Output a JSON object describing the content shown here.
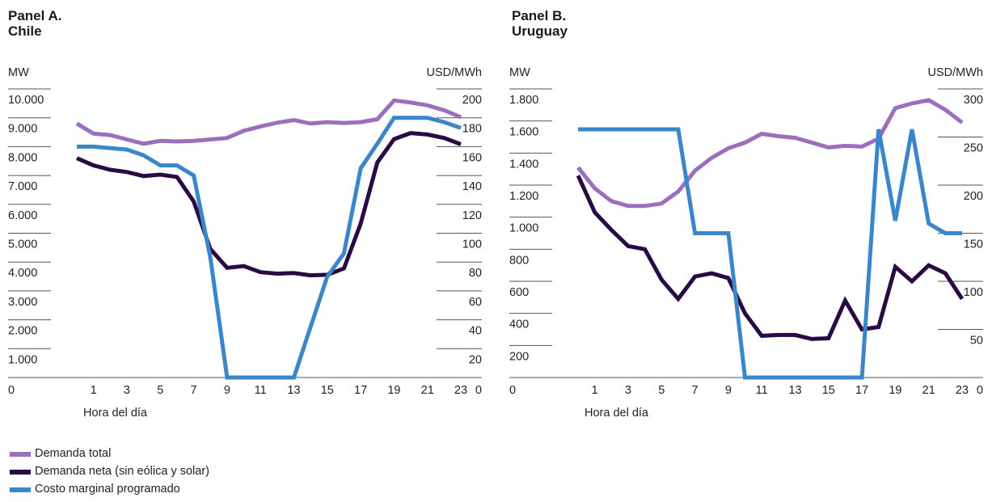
{
  "colors": {
    "total": "#9b6fc0",
    "net": "#2a0a44",
    "cost": "#3a86c8"
  },
  "legend": [
    {
      "label": "Demanda total",
      "color": "#9b6fc0"
    },
    {
      "label": "Demanda neta (sin eólica y solar)",
      "color": "#2a0a44"
    },
    {
      "label": "Costo marginal programado",
      "color": "#3a86c8"
    }
  ],
  "chart_data": [
    {
      "type": "line",
      "title_line1": "Panel A.",
      "title_line2": "Chile",
      "ylabel_left": "MW",
      "ylabel_right": "USD/MWh",
      "xlabel": "Hora del día",
      "ylim_left": [
        0,
        10000
      ],
      "ylim_right": [
        0,
        200
      ],
      "yticks_left": [
        "10.000",
        "9.000",
        "8.000",
        "7.000",
        "6.000",
        "5.000",
        "4.000",
        "3.000",
        "2.000",
        "1.000"
      ],
      "yticks_right": [
        "200",
        "180",
        "160",
        "140",
        "120",
        "100",
        "80",
        "60",
        "40",
        "20"
      ],
      "x_ticks": [
        "1",
        "3",
        "5",
        "7",
        "9",
        "11",
        "13",
        "15",
        "17",
        "19",
        "21",
        "23"
      ],
      "zero_label": "0",
      "x": [
        0,
        1,
        2,
        3,
        4,
        5,
        6,
        7,
        8,
        9,
        10,
        11,
        12,
        13,
        14,
        15,
        16,
        17,
        18,
        19,
        20,
        21,
        22,
        23
      ],
      "series": [
        {
          "name": "Demanda total",
          "axis": "left",
          "values": [
            8800,
            8450,
            8400,
            8250,
            8100,
            8200,
            8180,
            8200,
            8250,
            8300,
            8550,
            8700,
            8830,
            8920,
            8800,
            8850,
            8820,
            8850,
            8950,
            9600,
            9530,
            9430,
            9260,
            9020
          ]
        },
        {
          "name": "Demanda neta (sin eólica y solar)",
          "axis": "left",
          "values": [
            7600,
            7350,
            7200,
            7120,
            6980,
            7030,
            6950,
            6100,
            4450,
            3800,
            3860,
            3650,
            3600,
            3620,
            3540,
            3560,
            3780,
            5330,
            7450,
            8260,
            8470,
            8420,
            8300,
            8080
          ]
        },
        {
          "name": "Costo marginal programado",
          "axis": "right",
          "values": [
            160,
            160,
            159,
            158,
            154,
            147,
            147,
            140,
            83,
            0,
            0,
            0,
            0,
            0,
            35,
            70,
            86,
            145,
            162,
            180,
            180,
            180,
            177,
            173
          ]
        }
      ]
    },
    {
      "type": "line",
      "title_line1": "Panel B.",
      "title_line2": "Uruguay",
      "ylabel_left": "MW",
      "ylabel_right": "USD/MWh",
      "xlabel": "Hora del día",
      "ylim_left": [
        0,
        1800
      ],
      "ylim_right": [
        0,
        300
      ],
      "yticks_left": [
        "1.800",
        "1.600",
        "1.400",
        "1.200",
        "1.000",
        "800",
        "600",
        "400",
        "200"
      ],
      "yticks_right": [
        "300",
        "250",
        "200",
        "150",
        "100",
        "50"
      ],
      "x_ticks": [
        "1",
        "3",
        "5",
        "7",
        "9",
        "11",
        "13",
        "15",
        "17",
        "19",
        "21",
        "23"
      ],
      "zero_label": "0",
      "x": [
        0,
        1,
        2,
        3,
        4,
        5,
        6,
        7,
        8,
        9,
        10,
        11,
        12,
        13,
        14,
        15,
        16,
        17,
        18,
        19,
        20,
        21,
        22,
        23
      ],
      "series": [
        {
          "name": "Demanda total",
          "axis": "left",
          "values": [
            1310,
            1180,
            1100,
            1070,
            1070,
            1085,
            1160,
            1290,
            1370,
            1430,
            1465,
            1520,
            1505,
            1495,
            1465,
            1435,
            1445,
            1440,
            1490,
            1680,
            1710,
            1730,
            1670,
            1590
          ]
        },
        {
          "name": "Demanda neta (sin eólica y solar)",
          "axis": "left",
          "values": [
            1260,
            1030,
            920,
            820,
            800,
            610,
            490,
            630,
            650,
            620,
            400,
            260,
            265,
            265,
            240,
            245,
            480,
            300,
            315,
            690,
            600,
            700,
            650,
            490
          ]
        },
        {
          "name": "Costo marginal programado",
          "axis": "right",
          "values": [
            258,
            258,
            258,
            258,
            258,
            258,
            258,
            150,
            150,
            150,
            0,
            0,
            0,
            0,
            0,
            0,
            0,
            0,
            258,
            163,
            258,
            160,
            150,
            150
          ]
        }
      ]
    }
  ]
}
